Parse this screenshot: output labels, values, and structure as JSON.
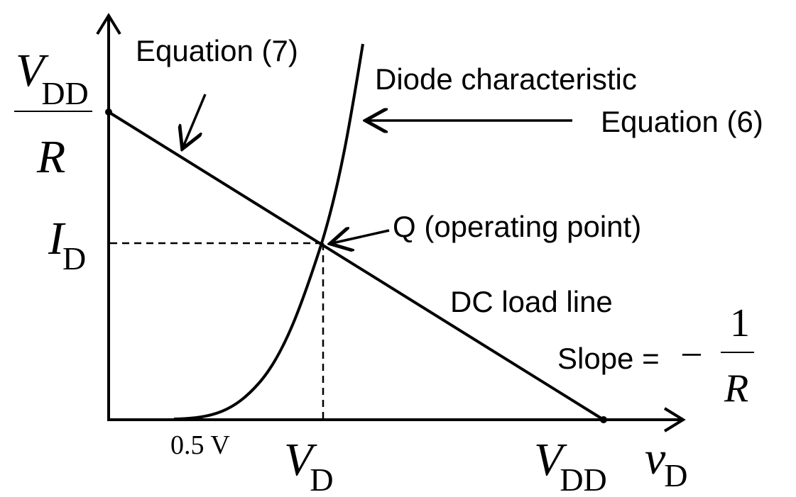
{
  "labels": {
    "equation7": "Equation (7)",
    "diode_characteristic": "Diode characteristic",
    "equation6": "Equation (6)",
    "q_point": "Q (operating point)",
    "load_line": "DC load line",
    "slope_prefix": "Slope =",
    "slope_minus": "−",
    "slope_numerator": "1",
    "slope_denominator": "R"
  },
  "y_axis": {
    "vdd_over_r": {
      "v": "V",
      "sub": "DD",
      "denominator": "R"
    },
    "id": {
      "main": "I",
      "sub": "D"
    }
  },
  "x_axis": {
    "threshold": "0.5 V",
    "vd": {
      "main": "V",
      "sub": "D"
    },
    "vdd": {
      "main": "V",
      "sub": "DD"
    },
    "variable": {
      "main": "v",
      "sub": "D"
    }
  }
}
